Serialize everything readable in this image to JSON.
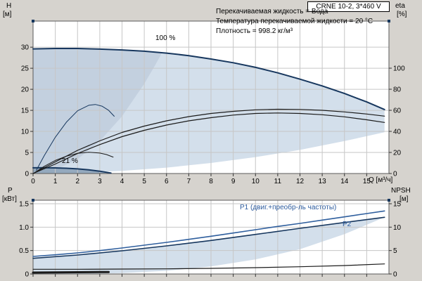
{
  "window": {
    "background": "#d6d3ce"
  },
  "header": {
    "title_box": "CRNE 10-2, 3*460 V"
  },
  "info": {
    "lines": [
      "Перекачиваемая жидкость = Вода",
      "Температура перекачиваемой жидкости = 20 °C",
      "Плотность = 998.2 кг/м³"
    ]
  },
  "axes_labels": {
    "top_left_symbol": "H",
    "top_left_unit": "[м]",
    "top_right_symbol": "eta",
    "top_right_unit": "[%]",
    "bottom_left_symbol": "P",
    "bottom_left_unit": "[кВт]",
    "bottom_right_symbol": "NPSH",
    "bottom_right_unit": "[м]",
    "x_unit": "Q [м³/ч]"
  },
  "curve_labels": {
    "speed_max": "100 %",
    "speed_min": "21 %",
    "p1": "P1 (двиг.+преобр-ль частоты)",
    "p2": "P2"
  },
  "colors": {
    "navy": "#17375e",
    "blue": "#2f5f9e",
    "black": "#1a1a1a",
    "region_light": "#d3dfeb",
    "region_mid": "#c3d0df",
    "region_dark": "#94a9be",
    "grid": "#c6c6c6",
    "plot_bg": "#ffffff",
    "border": "#5a5a5a"
  },
  "chart_data": [
    {
      "id": "qh",
      "type": "line",
      "title": "CRNE 10-2, 3*460 V",
      "xlabel": "Q [м³/ч]",
      "ylabel_left": "H [м]",
      "ylabel_right": "eta [%]",
      "x_range": [
        0,
        16
      ],
      "y_left_range": [
        0,
        36.2
      ],
      "y_right_range": [
        0,
        144.7
      ],
      "x_ticks": [
        "0",
        "1",
        "2",
        "3",
        "4",
        "5",
        "6",
        "7",
        "8",
        "9",
        "10",
        "11",
        "12",
        "13",
        "14",
        "15"
      ],
      "x_tick_values": [
        0,
        1,
        2,
        3,
        4,
        5,
        6,
        7,
        8,
        9,
        10,
        11,
        12,
        13,
        14,
        15
      ],
      "y_left_ticks": [
        "0",
        "5",
        "10",
        "15",
        "20",
        "25",
        "30"
      ],
      "y_left_tick_values": [
        0,
        5,
        10,
        15,
        20,
        25,
        30
      ],
      "y_right_ticks": [
        "0",
        "20",
        "40",
        "60",
        "80",
        "100"
      ],
      "y_right_tick_values": [
        0,
        20,
        40,
        60,
        80,
        100
      ],
      "regions": [
        {
          "name": "operating-envelope",
          "color_key": "region_light",
          "points": [
            [
              0,
              29.6
            ],
            [
              1,
              29.7
            ],
            [
              2,
              29.7
            ],
            [
              3,
              29.55
            ],
            [
              4,
              29.35
            ],
            [
              5,
              29.05
            ],
            [
              6,
              28.6
            ],
            [
              7,
              28.0
            ],
            [
              8,
              27.2
            ],
            [
              9,
              26.3
            ],
            [
              10,
              25.2
            ],
            [
              11,
              23.9
            ],
            [
              12,
              22.4
            ],
            [
              13,
              20.8
            ],
            [
              14,
              19.0
            ],
            [
              15,
              17.0
            ],
            [
              15.8,
              15.2
            ],
            [
              15.8,
              9.8
            ],
            [
              14,
              7.7
            ],
            [
              12,
              5.6
            ],
            [
              10,
              3.9
            ],
            [
              8,
              2.5
            ],
            [
              6,
              1.4
            ],
            [
              4,
              0.63
            ],
            [
              2,
              0.16
            ],
            [
              0,
              0
            ]
          ]
        },
        {
          "name": "left-wedge",
          "color_key": "region_mid",
          "points": [
            [
              0,
              0
            ],
            [
              1,
              0.85
            ],
            [
              2,
              3.4
            ],
            [
              3,
              7.7
            ],
            [
              4,
              13.6
            ],
            [
              5,
              21.3
            ],
            [
              5.5,
              25.8
            ],
            [
              5.8,
              28.7
            ],
            [
              5,
              29.05
            ],
            [
              4,
              29.35
            ],
            [
              3,
              29.55
            ],
            [
              2,
              29.7
            ],
            [
              1,
              29.7
            ],
            [
              0,
              29.6
            ]
          ]
        },
        {
          "name": "min-speed-area",
          "color_key": "region_dark",
          "points": [
            [
              0,
              1.35
            ],
            [
              0.5,
              1.37
            ],
            [
              1,
              1.33
            ],
            [
              1.5,
              1.25
            ],
            [
              2,
              1.1
            ],
            [
              2.5,
              0.87
            ],
            [
              3,
              0.55
            ],
            [
              3.5,
              0.12
            ],
            [
              3.5,
              0
            ],
            [
              0,
              0
            ]
          ]
        }
      ],
      "series": [
        {
          "name": "head-100pct",
          "axis": "left",
          "color_key": "navy",
          "width": 2,
          "points": [
            [
              0,
              29.6
            ],
            [
              1,
              29.7
            ],
            [
              2,
              29.7
            ],
            [
              3,
              29.55
            ],
            [
              4,
              29.35
            ],
            [
              5,
              29.05
            ],
            [
              6,
              28.6
            ],
            [
              7,
              28.0
            ],
            [
              8,
              27.2
            ],
            [
              9,
              26.3
            ],
            [
              10,
              25.2
            ],
            [
              11,
              23.9
            ],
            [
              12,
              22.4
            ],
            [
              13,
              20.8
            ],
            [
              14,
              19.0
            ],
            [
              15,
              17.0
            ],
            [
              15.8,
              15.2
            ]
          ]
        },
        {
          "name": "head-21pct",
          "axis": "left",
          "color_key": "navy",
          "width": 2,
          "points": [
            [
              0,
              1.35
            ],
            [
              0.5,
              1.37
            ],
            [
              1,
              1.33
            ],
            [
              1.5,
              1.25
            ],
            [
              2,
              1.1
            ],
            [
              2.5,
              0.87
            ],
            [
              3,
              0.55
            ],
            [
              3.5,
              0.12
            ]
          ]
        },
        {
          "name": "eta-1",
          "axis": "right",
          "color_key": "black",
          "width": 1.2,
          "points": [
            [
              0,
              0
            ],
            [
              1,
              11
            ],
            [
              2,
              22
            ],
            [
              3,
              31
            ],
            [
              4,
              39
            ],
            [
              5,
              45
            ],
            [
              6,
              50
            ],
            [
              7,
              54
            ],
            [
              8,
              57
            ],
            [
              9,
              59
            ],
            [
              10,
              60.5
            ],
            [
              11,
              61
            ],
            [
              12,
              60.8
            ],
            [
              13,
              60
            ],
            [
              14,
              58.5
            ],
            [
              15,
              56.5
            ],
            [
              15.8,
              54.5
            ]
          ]
        },
        {
          "name": "eta-2",
          "axis": "right",
          "color_key": "black",
          "width": 1.2,
          "points": [
            [
              0,
              0
            ],
            [
              1,
              9
            ],
            [
              2,
              19
            ],
            [
              3,
              27.5
            ],
            [
              4,
              35
            ],
            [
              5,
              41
            ],
            [
              6,
              46
            ],
            [
              7,
              50
            ],
            [
              8,
              53
            ],
            [
              9,
              55.5
            ],
            [
              10,
              57
            ],
            [
              11,
              57.5
            ],
            [
              12,
              57
            ],
            [
              13,
              55.8
            ],
            [
              14,
              53.8
            ],
            [
              15,
              51
            ],
            [
              15.8,
              48.5
            ]
          ]
        },
        {
          "name": "arc-small-1",
          "axis": "left",
          "color_key": "navy",
          "width": 1,
          "points": [
            [
              0.15,
              0.8
            ],
            [
              0.5,
              4.2
            ],
            [
              1,
              8.6
            ],
            [
              1.5,
              12.2
            ],
            [
              2,
              14.9
            ],
            [
              2.5,
              16.2
            ],
            [
              2.8,
              16.4
            ],
            [
              3.1,
              16.0
            ],
            [
              3.4,
              15.0
            ],
            [
              3.65,
              13.6
            ]
          ]
        },
        {
          "name": "arc-small-2",
          "axis": "left",
          "color_key": "black",
          "width": 1,
          "points": [
            [
              0.1,
              0.3
            ],
            [
              0.5,
              1.7
            ],
            [
              1,
              3.1
            ],
            [
              1.5,
              4.1
            ],
            [
              2,
              4.8
            ],
            [
              2.5,
              5.05
            ],
            [
              3,
              4.85
            ],
            [
              3.3,
              4.5
            ],
            [
              3.6,
              3.9
            ]
          ]
        }
      ]
    },
    {
      "id": "power",
      "type": "line",
      "xlabel": "",
      "ylabel_left": "P [кВт]",
      "ylabel_right": "NPSH [м]",
      "x_range": [
        0,
        16
      ],
      "y_left_range": [
        0,
        1.575
      ],
      "y_right_range": [
        0,
        15.75
      ],
      "x_ticks": [],
      "x_tick_values": [
        0,
        1,
        2,
        3,
        4,
        5,
        6,
        7,
        8,
        9,
        10,
        11,
        12,
        13,
        14,
        15
      ],
      "y_left_ticks": [
        "0",
        "0.5",
        "1.0",
        "1.5"
      ],
      "y_left_tick_values": [
        0,
        0.5,
        1.0,
        1.5
      ],
      "y_right_ticks": [
        "0",
        "5",
        "10",
        "15"
      ],
      "y_right_tick_values": [
        0,
        5,
        10,
        15
      ],
      "regions": [
        {
          "name": "power-envelope",
          "color_key": "region_light",
          "points": [
            [
              0,
              0.335
            ],
            [
              2,
              0.405
            ],
            [
              4,
              0.495
            ],
            [
              6,
              0.6
            ],
            [
              8,
              0.715
            ],
            [
              10,
              0.845
            ],
            [
              12,
              0.975
            ],
            [
              14,
              1.1
            ],
            [
              15.8,
              1.21
            ],
            [
              14,
              0.85
            ],
            [
              12,
              0.53
            ],
            [
              10,
              0.31
            ],
            [
              8,
              0.16
            ],
            [
              6,
              0.067
            ],
            [
              4,
              0.02
            ],
            [
              2,
              0.003
            ],
            [
              0,
              0
            ]
          ]
        }
      ],
      "series": [
        {
          "name": "p1",
          "axis": "left",
          "color_key": "blue",
          "width": 1.6,
          "points": [
            [
              0,
              0.375
            ],
            [
              1,
              0.41
            ],
            [
              2,
              0.45
            ],
            [
              3,
              0.5
            ],
            [
              4,
              0.555
            ],
            [
              5,
              0.615
            ],
            [
              6,
              0.675
            ],
            [
              7,
              0.74
            ],
            [
              8,
              0.805
            ],
            [
              9,
              0.875
            ],
            [
              10,
              0.945
            ],
            [
              11,
              1.015
            ],
            [
              12,
              1.08
            ],
            [
              13,
              1.15
            ],
            [
              14,
              1.22
            ],
            [
              15,
              1.29
            ],
            [
              15.8,
              1.345
            ]
          ]
        },
        {
          "name": "p2",
          "axis": "left",
          "color_key": "navy",
          "width": 1.6,
          "points": [
            [
              0,
              0.335
            ],
            [
              2,
              0.405
            ],
            [
              4,
              0.495
            ],
            [
              6,
              0.6
            ],
            [
              8,
              0.715
            ],
            [
              10,
              0.845
            ],
            [
              12,
              0.975
            ],
            [
              14,
              1.1
            ],
            [
              15.8,
              1.21
            ]
          ]
        },
        {
          "name": "npsh",
          "axis": "right",
          "color_key": "black",
          "width": 1.2,
          "points": [
            [
              0,
              1.0
            ],
            [
              2,
              1.0
            ],
            [
              4,
              1.05
            ],
            [
              6,
              1.1
            ],
            [
              8,
              1.2
            ],
            [
              10,
              1.35
            ],
            [
              12,
              1.55
            ],
            [
              14,
              1.8
            ],
            [
              15.8,
              2.15
            ]
          ]
        },
        {
          "name": "p-21pct",
          "axis": "left",
          "color_key": "black",
          "width": 3,
          "points": [
            [
              0,
              0.03
            ],
            [
              1,
              0.033
            ],
            [
              2,
              0.037
            ],
            [
              3,
              0.04
            ],
            [
              3.4,
              0.042
            ]
          ]
        }
      ]
    }
  ]
}
